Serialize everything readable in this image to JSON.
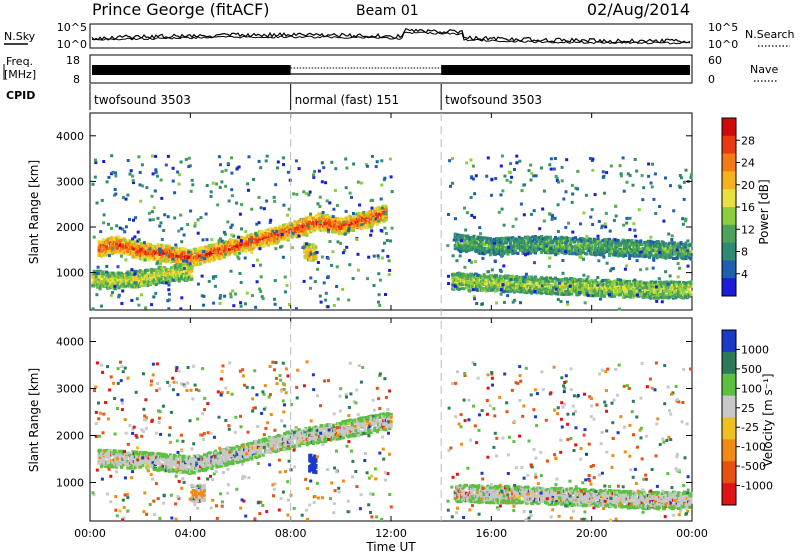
{
  "header": {
    "station": "Prince George (fitACF)",
    "beam": "Beam 01",
    "date": "02/Aug/2014"
  },
  "noise_panel": {
    "left_label": "N.Sky",
    "right_label": "N.Search",
    "left_ticks": [
      "10^5",
      "10^0"
    ],
    "right_ticks": [
      "10^5",
      "10^0"
    ]
  },
  "freq_panel": {
    "left_label_1": "Freq.",
    "left_label_2": "[MHz]",
    "left_ticks": [
      "18",
      "8"
    ],
    "right_ticks": [
      "60",
      "0"
    ],
    "right_label": "Nave"
  },
  "cpid_panel": {
    "label": "CPID",
    "segments": [
      {
        "name": "twofsound 3503",
        "start_hour": 0,
        "end_hour": 8
      },
      {
        "name": "normal (fast) 151",
        "start_hour": 8,
        "end_hour": 14
      },
      {
        "name": "twofsound 3503",
        "start_hour": 14,
        "end_hour": 24
      }
    ]
  },
  "chart_data": [
    {
      "type": "heatmap",
      "title": "",
      "ylabel": "Slant Range [km]",
      "xlabel": "",
      "ylim": [
        180,
        4500
      ],
      "y_ticks": [
        "1000",
        "2000",
        "3000",
        "4000"
      ],
      "colorbar": {
        "label": "Power [dB]",
        "ticks": [
          "4",
          "8",
          "12",
          "16",
          "20",
          "24",
          "28"
        ],
        "colors": [
          "#1c1cd8",
          "#1f5fb0",
          "#2e8a70",
          "#4ca45a",
          "#8ccf3c",
          "#e8e040",
          "#f5b21c",
          "#f57a14",
          "#e83c10",
          "#d00a0a"
        ]
      },
      "bands": [
        {
          "t": [
            0.3,
            1,
            2,
            3,
            4,
            5,
            6,
            7,
            8,
            9,
            10,
            11,
            11.8
          ],
          "range": [
            1550,
            1650,
            1500,
            1450,
            1350,
            1500,
            1650,
            1800,
            1950,
            2150,
            2050,
            2200,
            2350
          ],
          "level": 0.9
        },
        {
          "t": [
            0,
            1,
            2,
            3,
            4
          ],
          "range": [
            900,
            850,
            900,
            1000,
            1050
          ],
          "level": 0.55
        },
        {
          "t": [
            8.5,
            9
          ],
          "range": [
            1500,
            1450
          ],
          "level": 0.75
        },
        {
          "t": [
            14.4,
            16,
            18,
            20,
            22,
            24
          ],
          "range": [
            850,
            800,
            750,
            700,
            650,
            650
          ],
          "level": 0.5
        },
        {
          "t": [
            14.5,
            16,
            18,
            20,
            22,
            24
          ],
          "range": [
            1700,
            1600,
            1650,
            1600,
            1550,
            1500
          ],
          "level": 0.35
        }
      ]
    },
    {
      "type": "heatmap",
      "title": "",
      "ylabel": "Slant Range [km]",
      "xlabel": "Time UT",
      "ylim": [
        180,
        4500
      ],
      "y_ticks": [
        "1000",
        "2000",
        "3000",
        "4000"
      ],
      "x_ticks": [
        "00:00",
        "04:00",
        "08:00",
        "12:00",
        "16:00",
        "20:00",
        "00:00"
      ],
      "colorbar": {
        "label": "Velocity [m s⁻¹]",
        "ticks": [
          "1000",
          "500",
          "100",
          "25",
          "-25",
          "-100",
          "-500",
          "-1000"
        ],
        "colors": [
          "#1c3ac8",
          "#2c7a5a",
          "#5bc040",
          "#c8c8c8",
          "#f0c020",
          "#f08c14",
          "#e85010",
          "#e01414"
        ]
      },
      "bands": [
        {
          "t": [
            0.3,
            2,
            4,
            6,
            8,
            10,
            12
          ],
          "range": [
            1550,
            1500,
            1400,
            1650,
            1950,
            2150,
            2350
          ],
          "level": 0.5
        },
        {
          "t": [
            8.7,
            9
          ],
          "range": [
            1450,
            1400
          ],
          "level": 0.0
        },
        {
          "t": [
            4,
            4.5
          ],
          "range": [
            800,
            800
          ],
          "level": 0.8
        },
        {
          "t": [
            14.5,
            18,
            22,
            24
          ],
          "range": [
            800,
            750,
            650,
            650
          ],
          "level": 0.5
        }
      ]
    }
  ]
}
